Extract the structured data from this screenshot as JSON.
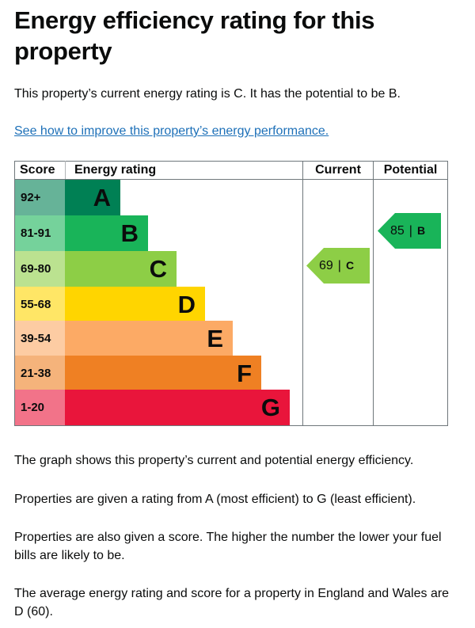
{
  "title": "Energy efficiency rating for this property",
  "intro": "This property’s current energy rating is C. It has the potential to be B.",
  "improve_link": "See how to improve this property’s energy performance.",
  "chart": {
    "headers": {
      "score": "Score",
      "energy_rating": "Energy rating",
      "current": "Current",
      "potential": "Potential"
    },
    "bands": [
      {
        "score": "92+",
        "letter": "A",
        "color": "#008054",
        "score_bg": "#66b398"
      },
      {
        "score": "81-91",
        "letter": "B",
        "color": "#19b459",
        "score_bg": "#75d29b"
      },
      {
        "score": "69-80",
        "letter": "C",
        "color": "#8dce46",
        "score_bg": "#bbe290"
      },
      {
        "score": "55-68",
        "letter": "D",
        "color": "#ffd500",
        "score_bg": "#ffe666"
      },
      {
        "score": "39-54",
        "letter": "E",
        "color": "#fcaa65",
        "score_bg": "#fdcca3"
      },
      {
        "score": "21-38",
        "letter": "F",
        "color": "#ef8023",
        "score_bg": "#f5b37b"
      },
      {
        "score": "1-20",
        "letter": "G",
        "color": "#e9153b",
        "score_bg": "#f27389"
      }
    ],
    "current": {
      "value": "69",
      "separator": "|",
      "letter": "C",
      "color": "#8dce46"
    },
    "potential": {
      "value": "85",
      "separator": "|",
      "letter": "B",
      "color": "#19b459"
    }
  },
  "paragraphs": {
    "graph": "The graph shows this property’s current and potential energy efficiency.",
    "ratings": "Properties are given a rating from A (most efficient) to G (least efficient).",
    "scores": "Properties are also given a score. The higher the number the lower your fuel bills are likely to be.",
    "average": "The average energy rating and score for a property in England and Wales are D (60)."
  }
}
